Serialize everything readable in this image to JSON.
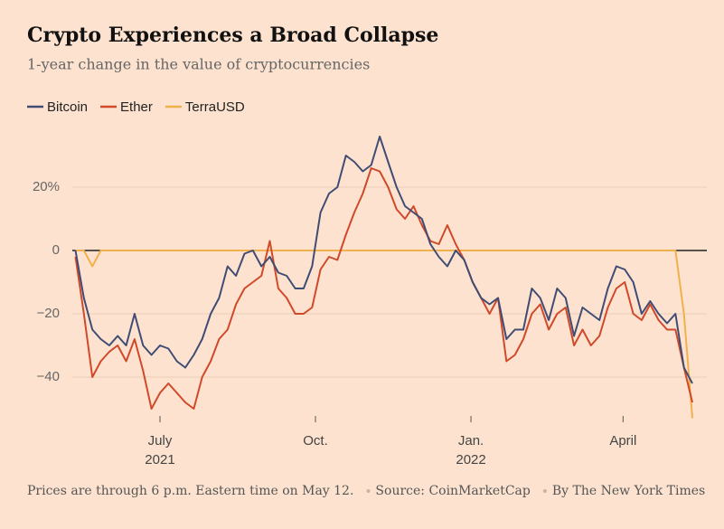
{
  "chart_data": {
    "type": "line",
    "title": "Crypto Experiences a Broad Collapse",
    "subtitle": "1-year change in the value of cryptocurrencies",
    "footer": [
      "Prices are through 6 p.m. Eastern time on May 12.",
      "Source: CoinMarketCap",
      "By The New York Times"
    ],
    "x": [
      0,
      5,
      10,
      15,
      20,
      25,
      30,
      35,
      40,
      45,
      50,
      55,
      60,
      65,
      70,
      75,
      80,
      85,
      90,
      95,
      100,
      105,
      110,
      115,
      120,
      125,
      130,
      135,
      140,
      145,
      150,
      155,
      160,
      165,
      170,
      175,
      180,
      185,
      190,
      195,
      200,
      205,
      210,
      215,
      220,
      225,
      230,
      235,
      240,
      245,
      250,
      255,
      260,
      265,
      270,
      275,
      280,
      285,
      290,
      295,
      300,
      305,
      310,
      315,
      320,
      325,
      330,
      335,
      340,
      345,
      350,
      355,
      360,
      365
    ],
    "xlim": [
      0,
      365
    ],
    "xticks": [
      {
        "value": 50,
        "label": "July"
      },
      {
        "value": 142,
        "label": "Oct."
      },
      {
        "value": 234,
        "label": "Jan."
      },
      {
        "value": 324,
        "label": "April"
      }
    ],
    "xtick_years": [
      {
        "value": 50,
        "label": "2021"
      },
      {
        "value": 234,
        "label": "2022"
      }
    ],
    "ylim": [
      -54,
      38
    ],
    "yticks": [
      {
        "value": -40,
        "label": "−40"
      },
      {
        "value": -20,
        "label": "−20"
      },
      0,
      {
        "value": 20,
        "label": "20%"
      }
    ],
    "grid": true,
    "legend": "top-left",
    "series": [
      {
        "name": "Bitcoin",
        "color": "#404c74",
        "values": [
          0,
          -15,
          -25,
          -28,
          -30,
          -27,
          -30,
          -20,
          -30,
          -33,
          -30,
          -31,
          -35,
          -37,
          -33,
          -28,
          -20,
          -15,
          -5,
          -8,
          -1,
          0,
          -5,
          -2,
          -7,
          -8,
          -12,
          -12,
          -5,
          12,
          18,
          20,
          30,
          28,
          25,
          27,
          36,
          28,
          20,
          14,
          12,
          10,
          2,
          -2,
          -5,
          0,
          -3,
          -10,
          -15,
          -17,
          -15,
          -28,
          -25,
          -25,
          -12,
          -15,
          -22,
          -12,
          -15,
          -27,
          -18,
          -20,
          -22,
          -12,
          -5,
          -6,
          -10,
          -20,
          -16,
          -20,
          -23,
          -20,
          -37,
          -42
        ]
      },
      {
        "name": "Ether",
        "color": "#d0492a",
        "values": [
          -2,
          -20,
          -40,
          -35,
          -32,
          -30,
          -35,
          -28,
          -38,
          -50,
          -45,
          -42,
          -45,
          -48,
          -50,
          -40,
          -35,
          -28,
          -25,
          -17,
          -12,
          -10,
          -8,
          3,
          -12,
          -15,
          -20,
          -20,
          -18,
          -6,
          -2,
          -3,
          5,
          12,
          18,
          26,
          25,
          20,
          13,
          10,
          14,
          8,
          3,
          2,
          8,
          2,
          -3,
          -10,
          -15,
          -20,
          -15,
          -35,
          -33,
          -28,
          -20,
          -17,
          -25,
          -20,
          -18,
          -30,
          -25,
          -30,
          -27,
          -18,
          -12,
          -10,
          -20,
          -22,
          -17,
          -22,
          -25,
          -25,
          -37,
          -48
        ]
      },
      {
        "name": "TerraUSD",
        "color": "#f0b14c",
        "values": [
          0,
          0,
          -5,
          0,
          0,
          0,
          0,
          0,
          0,
          0,
          0,
          0,
          0,
          0,
          0,
          0,
          0,
          0,
          0,
          0,
          0,
          0,
          0,
          0,
          0,
          0,
          0,
          0,
          0,
          0,
          0,
          0,
          0,
          0,
          0,
          0,
          0,
          0,
          0,
          0,
          0,
          0,
          0,
          0,
          0,
          0,
          0,
          0,
          0,
          0,
          0,
          0,
          0,
          0,
          0,
          0,
          0,
          0,
          0,
          0,
          0,
          0,
          0,
          0,
          0,
          0,
          0,
          0,
          0,
          0,
          0,
          0,
          -20,
          -53
        ]
      }
    ]
  }
}
